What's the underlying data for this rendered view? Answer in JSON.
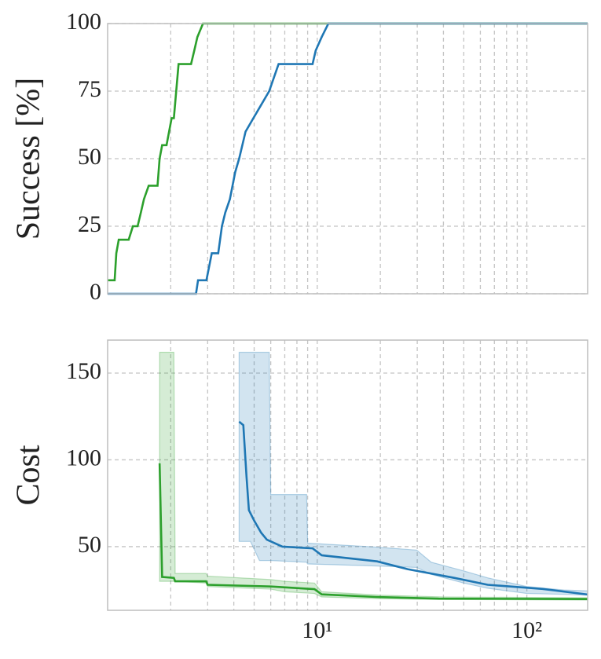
{
  "chart_data": [
    {
      "type": "line",
      "ylabel": "Success [%]",
      "xscale": "log",
      "xlim": [
        1,
        195
      ],
      "ylim": [
        0,
        100
      ],
      "yticks": [
        0,
        25,
        50,
        75,
        100
      ],
      "xgrid": [
        2,
        3,
        4,
        5,
        6,
        7,
        8,
        9,
        10,
        20,
        30,
        40,
        50,
        60,
        70,
        80,
        90,
        100
      ],
      "grid": true,
      "series": [
        {
          "color": "#2ca02c",
          "x": [
            1,
            1.08,
            1.1,
            1.13,
            1.26,
            1.32,
            1.39,
            1.44,
            1.49,
            1.57,
            1.73,
            1.77,
            1.82,
            1.91,
            2.02,
            2.07,
            2.18,
            2.5,
            2.59,
            2.68,
            2.85,
            195
          ],
          "values": [
            5,
            5,
            15,
            20,
            20,
            25,
            25,
            30,
            35,
            40,
            40,
            50,
            55,
            55,
            65,
            65,
            85,
            85,
            90,
            95,
            100,
            100
          ]
        },
        {
          "color": "#1f77b4",
          "x": [
            1,
            2.64,
            2.7,
            2.96,
            3.14,
            3.37,
            3.51,
            3.64,
            3.83,
            4.06,
            4.24,
            4.55,
            4.96,
            5.41,
            5.9,
            6.54,
            9.5,
            9.83,
            10.5,
            11.3,
            195
          ],
          "values": [
            0,
            0,
            5,
            5,
            15,
            15,
            25,
            30,
            35,
            45,
            50,
            60,
            65,
            70,
            75,
            85,
            85,
            90,
            95,
            100,
            100
          ]
        }
      ]
    },
    {
      "type": "line",
      "ylabel": "Cost",
      "xscale": "log",
      "xlim": [
        1,
        195
      ],
      "ylim": [
        13.3,
        169
      ],
      "yticks": [
        50,
        100,
        150
      ],
      "xticks": [
        {
          "value": 10,
          "label": "10¹"
        },
        {
          "value": 100,
          "label": "10²"
        }
      ],
      "xgrid": [
        2,
        3,
        4,
        5,
        6,
        7,
        8,
        9,
        10,
        20,
        30,
        40,
        50,
        60,
        70,
        80,
        90,
        100
      ],
      "grid": true,
      "series": [
        {
          "color": "#2ca02c",
          "x": [
            1.77,
            1.82,
            2.07,
            2.1,
            2.95,
            3.0,
            6.0,
            9.7,
            10.5,
            19,
            38,
            195
          ],
          "values": [
            98,
            32.5,
            32,
            30,
            30,
            28,
            27,
            25.5,
            22.5,
            21,
            20,
            19.8
          ],
          "band": {
            "x": [
              1.77,
              2.07,
              2.1,
              2.95,
              3.0,
              6.0,
              7.0,
              9.7,
              10.5,
              20,
              40,
              195
            ],
            "upper": [
              162,
              162,
              34.5,
              34.5,
              33,
              31,
              30,
              29,
              24,
              22,
              21,
              20.5
            ],
            "lower": [
              30,
              30,
              30,
              29,
              27,
              25.5,
              24,
              23,
              21,
              20,
              19.5,
              19.2
            ]
          }
        },
        {
          "color": "#1f77b4",
          "x": [
            4.24,
            4.44,
            4.6,
            4.72,
            5.0,
            5.4,
            5.75,
            6.82,
            9.5,
            10.5,
            19.3,
            27,
            45,
            65,
            119,
            195
          ],
          "values": [
            122,
            120,
            90,
            71,
            65,
            58,
            54,
            50,
            49,
            45,
            41.5,
            37,
            32,
            28,
            25.6,
            22.4
          ],
          "band": {
            "x": [
              4.24,
              4.8,
              5.3,
              5.9,
              6.0,
              8.9,
              9.0,
              17.7,
              29.8,
              35,
              50,
              65,
              100,
              150,
              195
            ],
            "upper": [
              162,
              162,
              162,
              162,
              80,
              80,
              52,
              50,
              48,
              41,
              36,
              32,
              27,
              25,
              24.5
            ],
            "lower": [
              53,
              53,
              42,
              42,
              42,
              41,
              40,
              39,
              38,
              34,
              29,
              26,
              23,
              22.5,
              22
            ]
          }
        }
      ]
    }
  ]
}
